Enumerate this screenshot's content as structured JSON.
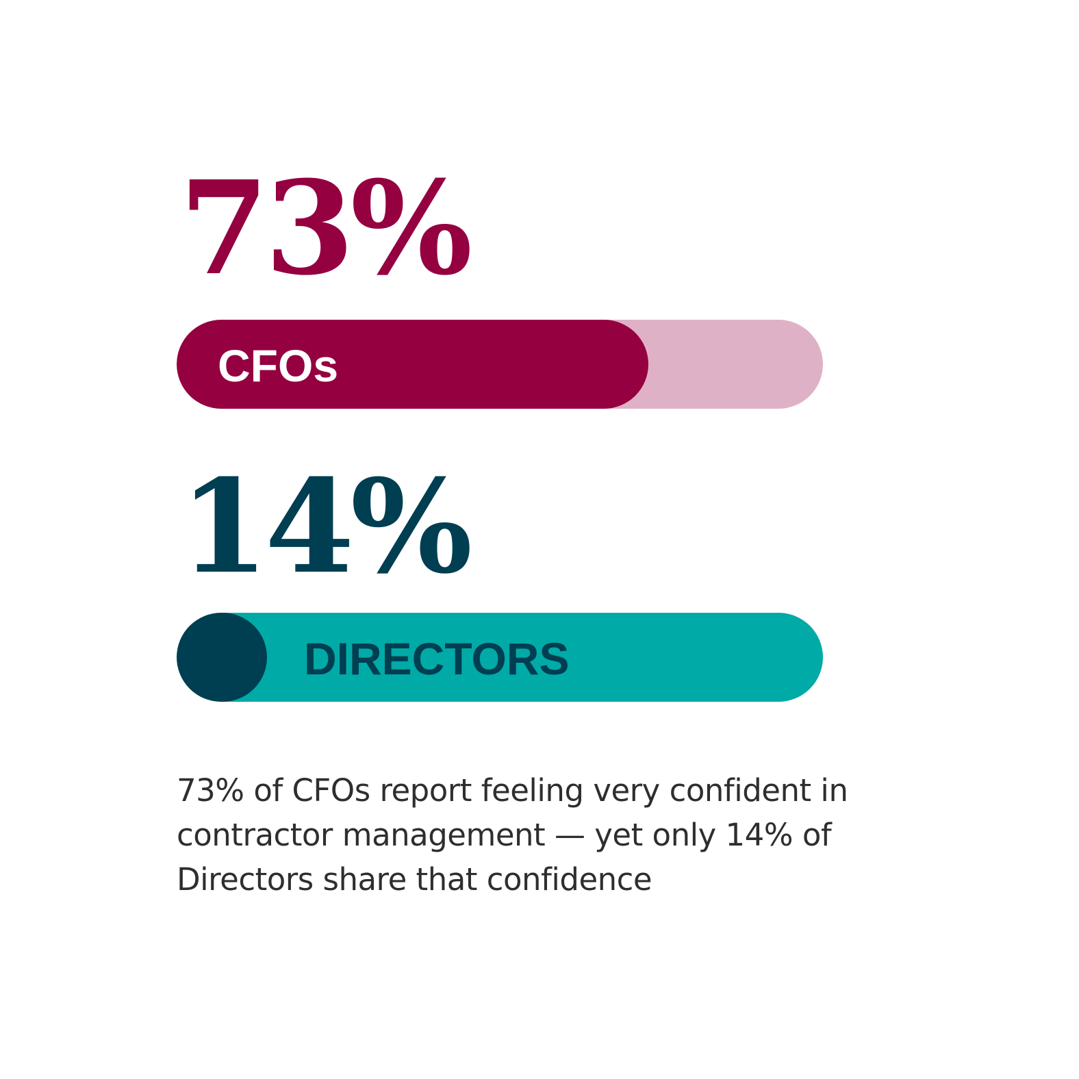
{
  "colors": {
    "cfo_primary": "#950040",
    "cfo_track": "#dfb1c6",
    "cfo_label": "#ffffff",
    "dir_primary": "#003e52",
    "dir_track": "#00aaa6",
    "dir_label": "#003e52",
    "caption": "#2e2e2e"
  },
  "chart_data": {
    "type": "bar",
    "orientation": "horizontal",
    "categories": [
      "CFOs",
      "DIRECTORS"
    ],
    "values": [
      73,
      14
    ],
    "value_labels": [
      "73%",
      "14%"
    ],
    "xlim": [
      0,
      100
    ],
    "grid": false,
    "legend": "none",
    "caption": "73% of CFOs report feeling very confident in contractor management — yet only 14% of Directors share that confidence"
  }
}
